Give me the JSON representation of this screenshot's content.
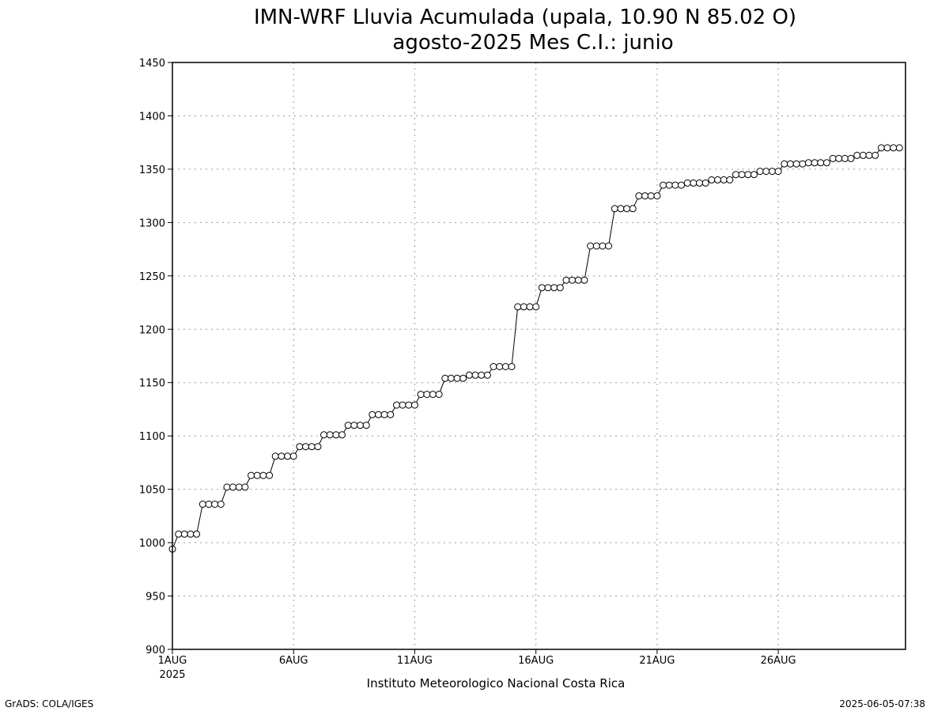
{
  "chart_data": {
    "type": "line",
    "title": "IMN-WRF  Lluvia Acumulada (upala, 10.90  N 85.02  O)",
    "subtitle": "agosto-2025 Mes C.I.: junio",
    "xlabel": "Instituto Meteorologico Nacional Costa Rica",
    "ylabel": "",
    "ylim": [
      900,
      1450
    ],
    "yticks": [
      900,
      950,
      1000,
      1050,
      1100,
      1150,
      1200,
      1250,
      1300,
      1350,
      1400,
      1450
    ],
    "xlim": [
      "2025-08-01 00:00",
      "2025-08-31 06:00"
    ],
    "xticks": [
      {
        "x": "2025-08-01 00:00",
        "label": "1AUG",
        "sublabel": "2025"
      },
      {
        "x": "2025-08-06 00:00",
        "label": "6AUG",
        "sublabel": ""
      },
      {
        "x": "2025-08-11 00:00",
        "label": "11AUG",
        "sublabel": ""
      },
      {
        "x": "2025-08-16 00:00",
        "label": "16AUG",
        "sublabel": ""
      },
      {
        "x": "2025-08-21 00:00",
        "label": "21AUG",
        "sublabel": ""
      },
      {
        "x": "2025-08-26 00:00",
        "label": "26AUG",
        "sublabel": ""
      }
    ],
    "grid": true,
    "marker": "open-circle",
    "x_step": "6 hours",
    "x_start": "2025-08-01 00:00",
    "y": [
      994,
      1008,
      1008,
      1008,
      1008,
      1036,
      1036,
      1036,
      1036,
      1052,
      1052,
      1052,
      1052,
      1063,
      1063,
      1063,
      1063,
      1081,
      1081,
      1081,
      1081,
      1090,
      1090,
      1090,
      1090,
      1101,
      1101,
      1101,
      1101,
      1110,
      1110,
      1110,
      1110,
      1120,
      1120,
      1120,
      1120,
      1129,
      1129,
      1129,
      1129,
      1139,
      1139,
      1139,
      1139,
      1154,
      1154,
      1154,
      1154,
      1157,
      1157,
      1157,
      1157,
      1165,
      1165,
      1165,
      1165,
      1221,
      1221,
      1221,
      1221,
      1239,
      1239,
      1239,
      1239,
      1246,
      1246,
      1246,
      1246,
      1278,
      1278,
      1278,
      1278,
      1313,
      1313,
      1313,
      1313,
      1325,
      1325,
      1325,
      1325,
      1335,
      1335,
      1335,
      1335,
      1337,
      1337,
      1337,
      1337,
      1340,
      1340,
      1340,
      1340,
      1345,
      1345,
      1345,
      1345,
      1348,
      1348,
      1348,
      1348,
      1355,
      1355,
      1355,
      1355,
      1356,
      1356,
      1356,
      1356,
      1360,
      1360,
      1360,
      1360,
      1363,
      1363,
      1363,
      1363,
      1370,
      1370,
      1370,
      1370
    ]
  },
  "footer": {
    "left": "GrADS: COLA/IGES",
    "right": "2025-06-05-07:38"
  }
}
